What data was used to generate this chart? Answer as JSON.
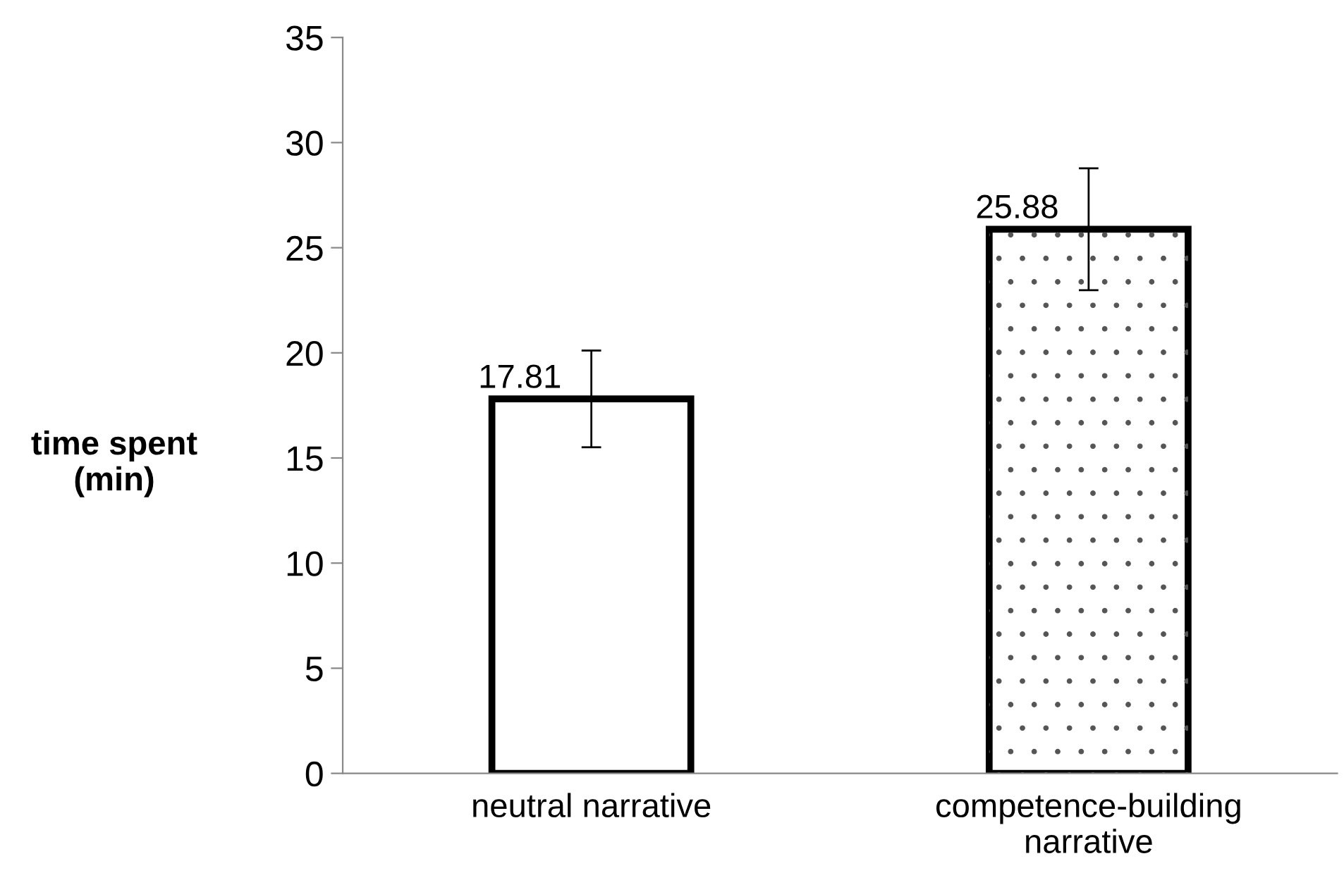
{
  "chart_data": {
    "type": "bar",
    "ylabel": "time spent\n(min)",
    "categories": [
      "neutral narrative",
      "competence-building\nnarrative"
    ],
    "values": [
      17.81,
      25.88
    ],
    "errors": [
      2.3,
      2.9
    ],
    "colors": [
      "#ffffff",
      "#ffffff"
    ],
    "ylim": [
      0,
      35
    ],
    "yticks": [
      0,
      5,
      10,
      15,
      20,
      25,
      30,
      35
    ],
    "data_labels": true,
    "grid": false,
    "legend": false
  }
}
